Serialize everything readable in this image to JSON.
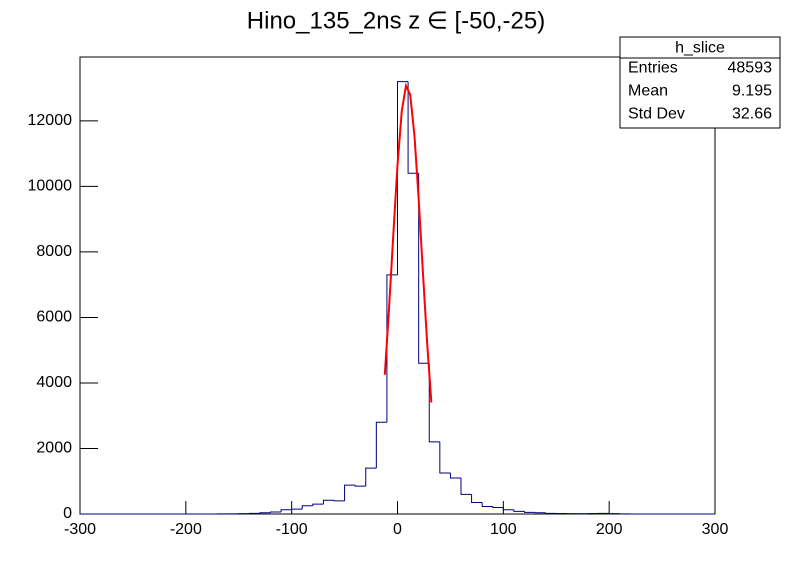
{
  "chart_data": {
    "type": "histogram",
    "title": "Hino_135_2ns z  ∈ [-50,-25)",
    "bins": [
      -300,
      -290,
      -280,
      -270,
      -260,
      -250,
      -240,
      -230,
      -220,
      -210,
      -200,
      -190,
      -180,
      -170,
      -160,
      -150,
      -140,
      -130,
      -120,
      -110,
      -100,
      -90,
      -80,
      -70,
      -60,
      -50,
      -40,
      -30,
      -20,
      -10,
      0,
      10,
      20,
      30,
      40,
      50,
      60,
      70,
      80,
      90,
      100,
      110,
      120,
      130,
      140,
      150,
      160,
      170,
      180,
      190,
      200,
      210,
      220,
      230,
      240,
      250,
      260,
      270,
      280,
      290,
      300
    ],
    "values": [
      0,
      0,
      0,
      0,
      0,
      0,
      0,
      0,
      0,
      0,
      0,
      0,
      0,
      5,
      5,
      10,
      20,
      40,
      60,
      130,
      150,
      250,
      300,
      420,
      400,
      880,
      850,
      1400,
      2800,
      7300,
      13200,
      10400,
      4600,
      2200,
      1250,
      1100,
      600,
      350,
      230,
      200,
      130,
      80,
      50,
      40,
      20,
      15,
      10,
      10,
      15,
      20,
      10,
      5,
      0,
      0,
      0,
      0,
      0,
      0,
      0,
      0
    ],
    "color": "#000080",
    "fit": {
      "color": "#ff0000",
      "x": [
        -12,
        -8,
        -4,
        0,
        4,
        8,
        12,
        16,
        20,
        24,
        28,
        32
      ],
      "values": [
        4250,
        6270,
        8510,
        10650,
        12290,
        13070,
        12800,
        11560,
        9620,
        7380,
        5220,
        3400
      ]
    },
    "xlim": [
      -300,
      300
    ],
    "xticks": [
      -300,
      -200,
      -100,
      0,
      100,
      200,
      300
    ],
    "ylim": [
      0,
      13950
    ],
    "yticks": [
      0,
      2000,
      4000,
      6000,
      8000,
      10000,
      12000
    ],
    "stats": {
      "title": "h_slice",
      "rows": [
        [
          "Entries",
          48593
        ],
        [
          "Mean",
          9.195
        ],
        [
          "Std Dev",
          32.66
        ]
      ]
    }
  }
}
